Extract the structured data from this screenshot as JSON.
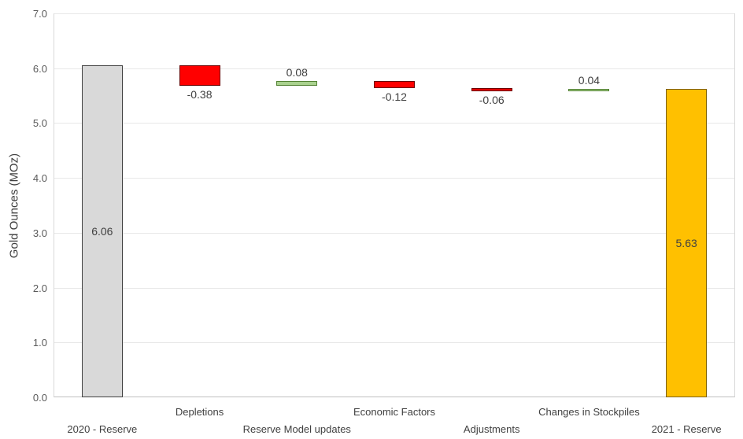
{
  "chart_data": {
    "type": "bar",
    "subtype": "waterfall",
    "title": "",
    "xlabel": "",
    "ylabel": "Gold Ounces (MOz)",
    "ylim": [
      0,
      7
    ],
    "ytick_step": 1,
    "ytick_labels": [
      "0.0",
      "1.0",
      "2.0",
      "3.0",
      "4.0",
      "5.0",
      "6.0",
      "7.0"
    ],
    "grid": "horizontal",
    "legend": "none",
    "categories": [
      "2020 - Reserve",
      "Depletions",
      "Reserve Model updates",
      "Economic Factors",
      "Adjustments",
      "Changes in Stockpiles",
      "2021 - Reserve"
    ],
    "bars": [
      {
        "label": "2020 - Reserve",
        "kind": "total",
        "value": 6.06,
        "display": "6.06",
        "fill": "#d9d9d9",
        "border": "#404040",
        "label_pos": "inside"
      },
      {
        "label": "Depletions",
        "kind": "delta",
        "value": -0.38,
        "display": "-0.38",
        "fill": "#ff0000",
        "border": "#6b0000",
        "label_pos": "below"
      },
      {
        "label": "Reserve Model updates",
        "kind": "delta",
        "value": 0.08,
        "display": "0.08",
        "fill": "#a9d18e",
        "border": "#548235",
        "label_pos": "above"
      },
      {
        "label": "Economic Factors",
        "kind": "delta",
        "value": -0.12,
        "display": "-0.12",
        "fill": "#ff0000",
        "border": "#6b0000",
        "label_pos": "below"
      },
      {
        "label": "Adjustments",
        "kind": "delta",
        "value": -0.06,
        "display": "-0.06",
        "fill": "#e30000",
        "border": "#6b0000",
        "label_pos": "below"
      },
      {
        "label": "Changes in Stockpiles",
        "kind": "delta",
        "value": 0.04,
        "display": "0.04",
        "fill": "#a9d18e",
        "border": "#548235",
        "label_pos": "above"
      },
      {
        "label": "2021 - Reserve",
        "kind": "total",
        "value": 5.63,
        "display": "5.63",
        "fill": "#ffc000",
        "border": "#7f6000",
        "label_pos": "inside"
      }
    ],
    "colors": {
      "gridline": "#e8e8e8",
      "plot_border": "#d9d9d9",
      "axis_line": "#bfbfbf",
      "tick_text": "#595959",
      "label_text": "#404040"
    }
  }
}
